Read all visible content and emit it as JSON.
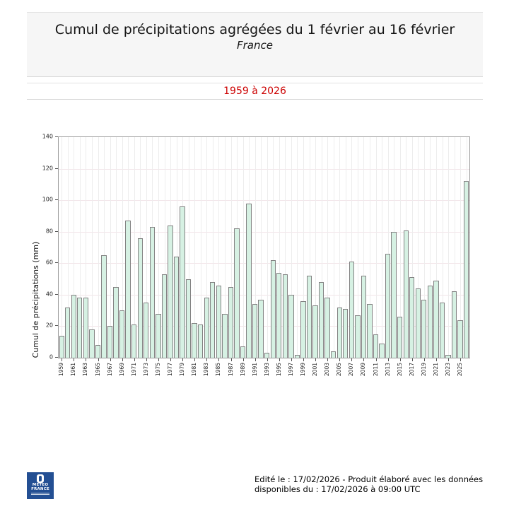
{
  "header": {
    "title": "Cumul de précipitations agrégées du 1 février au 16 février",
    "subtitle": "France"
  },
  "period": {
    "label": "1959 à 2026",
    "color": "#cc0000"
  },
  "chart_data": {
    "type": "bar",
    "title": "Cumul de précipitations agrégées du 1 février au 16 février - France - 1959 à 2026",
    "xlabel": "",
    "ylabel": "Cumul de précipitations (mm)",
    "ylim": [
      0,
      140
    ],
    "y_ticks": [
      0,
      20,
      40,
      60,
      80,
      100,
      120,
      140
    ],
    "grid": true,
    "legend": "none",
    "bar_fill": "#d6f1e3",
    "bar_border": "#828282",
    "categories": [
      1959,
      1960,
      1961,
      1962,
      1963,
      1964,
      1965,
      1966,
      1967,
      1968,
      1969,
      1970,
      1971,
      1972,
      1973,
      1974,
      1975,
      1976,
      1977,
      1978,
      1979,
      1980,
      1981,
      1982,
      1983,
      1984,
      1985,
      1986,
      1987,
      1988,
      1989,
      1990,
      1991,
      1992,
      1993,
      1994,
      1995,
      1996,
      1997,
      1998,
      1999,
      2000,
      2001,
      2002,
      2003,
      2004,
      2005,
      2006,
      2007,
      2008,
      2009,
      2010,
      2011,
      2012,
      2013,
      2014,
      2015,
      2016,
      2017,
      2018,
      2019,
      2020,
      2021,
      2022,
      2023,
      2024,
      2025,
      2026
    ],
    "values": [
      14,
      32,
      40,
      38,
      38,
      18,
      8,
      65,
      20,
      45,
      30,
      87,
      21,
      76,
      35,
      83,
      28,
      53,
      84,
      64,
      96,
      50,
      22,
      21,
      38,
      48,
      46,
      28,
      45,
      82,
      7,
      98,
      34,
      37,
      3,
      62,
      54,
      53,
      40,
      2,
      36,
      52,
      33,
      48,
      38,
      4,
      32,
      31,
      61,
      27,
      52,
      34,
      15,
      9,
      66,
      80,
      26,
      81,
      51,
      44,
      37,
      46,
      49,
      35,
      2,
      42,
      24,
      112
    ],
    "x_tick_labels": [
      "1959",
      "1961",
      "1963",
      "1965",
      "1967",
      "1969",
      "1971",
      "1973",
      "1975",
      "1977",
      "1979",
      "1981",
      "1983",
      "1985",
      "1987",
      "1989",
      "1991",
      "1993",
      "1995",
      "1997",
      "1999",
      "2001",
      "2003",
      "2005",
      "2007",
      "2009",
      "2011",
      "2013",
      "2015",
      "2017",
      "2019",
      "2021",
      "2023",
      "2025"
    ]
  },
  "footer": {
    "line1": "Edité le : 17/02/2026 - Produit élaboré avec les données",
    "line2": "disponibles du : 17/02/2026 à 09:00 UTC",
    "logo": {
      "line1": "METEO",
      "line2": "FRANCE",
      "bg": "#234f93"
    }
  }
}
